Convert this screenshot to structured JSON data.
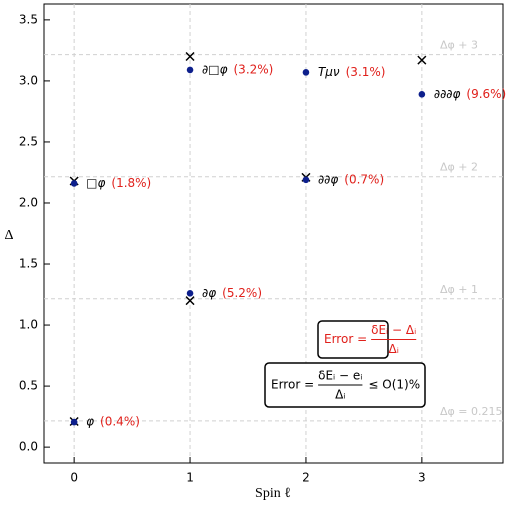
{
  "chart_data": {
    "type": "scatter",
    "xlabel": "Spin ℓ",
    "ylabel": "Δ",
    "xlim": [
      -0.26,
      3.7
    ],
    "ylim": [
      -0.13,
      3.63
    ],
    "xticks": [
      0,
      1,
      2,
      3
    ],
    "yticks": [
      {
        "value": 0,
        "label": "0.0"
      },
      0.5,
      {
        "value": 1,
        "label": "1.0"
      },
      1.5,
      {
        "value": 2,
        "label": "2.0"
      },
      2.5,
      {
        "value": 3,
        "label": "3.0"
      },
      3.5
    ],
    "grid": true,
    "hlines": [
      {
        "value": 0.215,
        "label": "Δφ = 0.215"
      },
      {
        "value": 1.215,
        "label": "Δφ + 1"
      },
      {
        "value": 2.215,
        "label": "Δφ + 2"
      },
      {
        "value": 3.215,
        "label": "Δφ + 3"
      }
    ],
    "series": [
      {
        "marker": "cross",
        "color": "#000000",
        "x": [
          0,
          0,
          1,
          1,
          2,
          3
        ],
        "values": [
          0.21,
          2.18,
          1.2,
          3.2,
          2.21,
          3.17
        ]
      },
      {
        "marker": "dot",
        "color": "#0d1f8c",
        "x": [
          0,
          0,
          1,
          1,
          2,
          2,
          3
        ],
        "values": [
          0.205,
          2.16,
          1.26,
          3.09,
          2.19,
          3.07,
          2.89
        ],
        "labels": [
          "φ",
          "□φ",
          "∂φ",
          "∂□φ",
          "∂∂φ",
          "Tμν",
          "∂∂∂φ"
        ],
        "errors": [
          "(0.4%)",
          "(1.8%)",
          "(5.2%)",
          "(3.2%)",
          "(0.7%)",
          "(3.1%)",
          "(9.6%)"
        ]
      }
    ],
    "formula_1": {
      "lhs": "Error =",
      "numerator": "δEᵢ − Δᵢ",
      "denominator": "Δᵢ",
      "color": "#e0201b"
    },
    "formula_2": {
      "lhs": "Error =",
      "numerator": "δEᵢ − eᵢ",
      "denominator": "Δᵢ",
      "rhs": "≤ O(1)%",
      "color": "#000000"
    },
    "error_color": "#e0201b"
  }
}
